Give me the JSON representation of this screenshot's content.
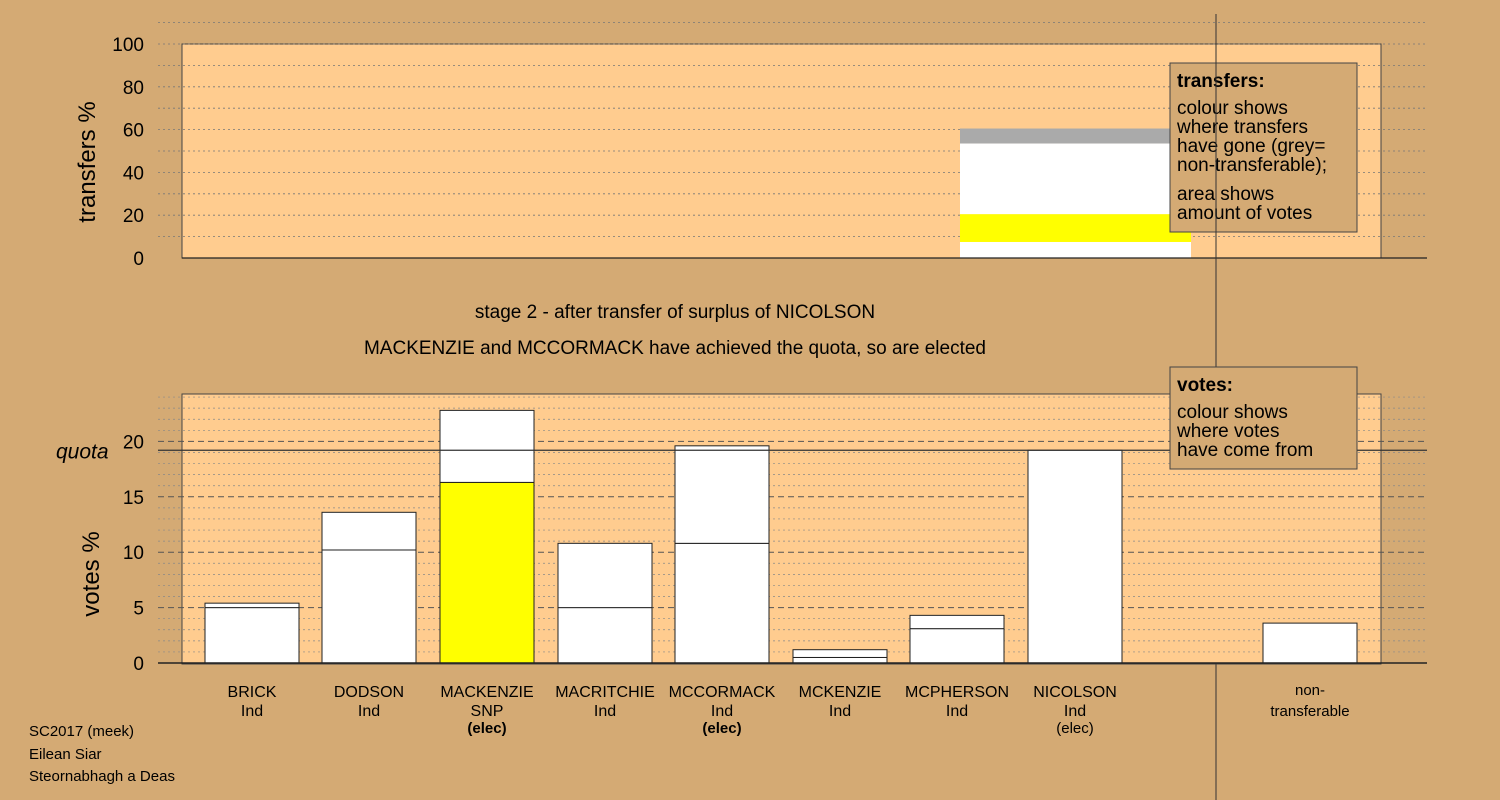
{
  "colors": {
    "background": "#d4aa74",
    "plot_bg": "#ffcc8f",
    "bar": "#ffffff",
    "snp": "#ffff00",
    "non_transferable": "#aaaaaa"
  },
  "chart_data": [
    {
      "type": "bar",
      "stacked": true,
      "ylabel": "transfers %",
      "ylim": [
        0,
        100
      ],
      "yticks": [
        0,
        20,
        40,
        60,
        80,
        100
      ],
      "bars": [
        {
          "column": "NICOLSON",
          "segments": [
            {
              "value": 7.5,
              "color": "#ffffff"
            },
            {
              "value": 13.0,
              "color": "#ffff00"
            },
            {
              "value": 33.0,
              "color": "#ffffff"
            },
            {
              "value": 7.0,
              "color": "#aaaaaa"
            }
          ]
        }
      ],
      "legend": {
        "title": "transfers:",
        "lines1": [
          "colour shows",
          "where transfers",
          "have gone (grey=",
          "non-transferable);"
        ],
        "lines2": [
          "area shows",
          "amount of votes"
        ]
      }
    },
    {
      "type": "bar",
      "stacked": true,
      "ylabel": "votes %",
      "ylim": [
        0,
        24
      ],
      "yticks": [
        0,
        5,
        10,
        15,
        20
      ],
      "quota": 19.2,
      "quota_label": "quota",
      "categories": [
        "BRICK",
        "DODSON",
        "MACKENZIE",
        "MACRITCHIE",
        "MCCORMACK",
        "MCKENZIE",
        "MCPHERSON",
        "NICOLSON",
        "non-transferable"
      ],
      "candidates": [
        {
          "name": "BRICK",
          "party": "Ind",
          "status": "",
          "segments": [
            {
              "value": 5.0,
              "color": "#ffffff"
            },
            {
              "value": 0.4,
              "color": "#ffffff"
            }
          ]
        },
        {
          "name": "DODSON",
          "party": "Ind",
          "status": "",
          "segments": [
            {
              "value": 10.2,
              "color": "#ffffff"
            },
            {
              "value": 3.4,
              "color": "#ffffff"
            }
          ]
        },
        {
          "name": "MACKENZIE",
          "party": "SNP",
          "status": "(elec)",
          "segments": [
            {
              "value": 16.3,
              "color": "#ffff00"
            },
            {
              "value": 6.5,
              "color": "#ffffff"
            }
          ]
        },
        {
          "name": "MACRITCHIE",
          "party": "Ind",
          "status": "",
          "segments": [
            {
              "value": 5.0,
              "color": "#ffffff"
            },
            {
              "value": 5.8,
              "color": "#ffffff"
            }
          ]
        },
        {
          "name": "MCCORMACK",
          "party": "Ind",
          "status": "(elec)",
          "segments": [
            {
              "value": 10.8,
              "color": "#ffffff"
            },
            {
              "value": 8.8,
              "color": "#ffffff"
            }
          ]
        },
        {
          "name": "MCKENZIE",
          "party": "Ind",
          "status": "",
          "segments": [
            {
              "value": 0.5,
              "color": "#ffffff"
            },
            {
              "value": 0.7,
              "color": "#ffffff"
            }
          ]
        },
        {
          "name": "MCPHERSON",
          "party": "Ind",
          "status": "",
          "segments": [
            {
              "value": 3.1,
              "color": "#ffffff"
            },
            {
              "value": 1.2,
              "color": "#ffffff"
            }
          ]
        },
        {
          "name": "NICOLSON",
          "party": "Ind",
          "status": "(elec)",
          "segments": [
            {
              "value": 19.2,
              "color": "#ffffff"
            }
          ]
        }
      ],
      "non_transferable": {
        "label_line1": "non-",
        "label_line2": "transferable",
        "value": 3.6
      },
      "legend": {
        "title": "votes:",
        "lines": [
          "colour shows",
          "where votes",
          "have come from"
        ]
      }
    }
  ],
  "annotations": {
    "stage": "stage 2 - after transfer of surplus of NICOLSON",
    "elected": "MACKENZIE and MCCORMACK have achieved the quota, so are elected"
  },
  "footer": {
    "line1": "SC2017 (meek)",
    "line2": "Eilean Siar",
    "line3": "Steornabhagh a Deas"
  }
}
